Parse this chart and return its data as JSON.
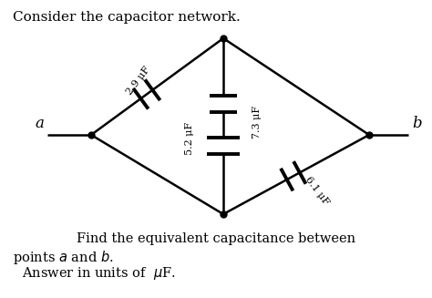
{
  "title": "Consider the capacitor network.",
  "footer_line1": "Find the equivalent capacitance between",
  "footer_line2": "points $a$ and $b$.",
  "footer_line3": "Answer in units of  $\\mu$F.",
  "label_a": "a",
  "label_b": "b",
  "cap_top_left": "2.9 μF",
  "cap_top_right": "7.3 μF",
  "cap_bottom_left": "5.2 μF",
  "cap_bottom_right": "6.1 μF",
  "line_color": "#000000",
  "bg_color": "#ffffff"
}
